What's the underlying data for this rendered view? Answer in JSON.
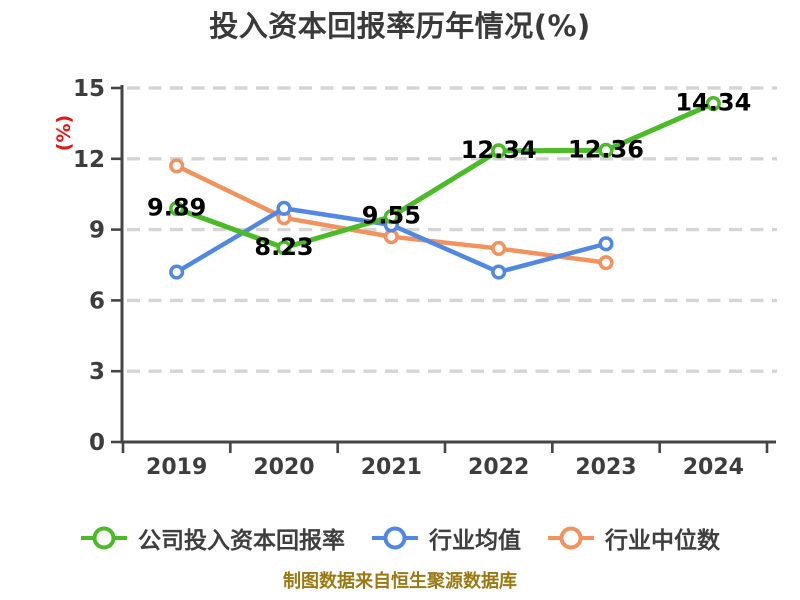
{
  "title": "投入资本回报率历年情况(%)",
  "footer": "制图数据来自恒生聚源数据库",
  "colors": {
    "title_text": "#3a3a3a",
    "axis": "#454545",
    "tick_text": "#3d3d3d",
    "grid": "#d5d5d5",
    "ylabel_red": "#e51717",
    "footer_gold": "#9a7a14",
    "series_company_green": "#4bbb28",
    "series_mean_blue": "#5287e3",
    "series_median_orange": "#f2925e"
  },
  "chart_data": {
    "type": "line",
    "title": "投入资本回报率历年情况(%)",
    "xlabel": "",
    "ylabel": "(%)",
    "categories": [
      "2019",
      "2020",
      "2021",
      "2022",
      "2023",
      "2024"
    ],
    "yticks": [
      0,
      3,
      6,
      9,
      12,
      15
    ],
    "ylim": [
      0,
      15
    ],
    "grid": "horizontal-dashed",
    "legend_position": "bottom",
    "series": [
      {
        "name": "公司投入资本回报率",
        "color": "#4bbb28",
        "values": [
          9.89,
          8.23,
          9.55,
          12.34,
          12.36,
          14.34
        ],
        "labels": [
          "9.89",
          "8.23",
          "9.55",
          "12.34",
          "12.36",
          "14.34"
        ],
        "show_labels": true,
        "line_width": 5
      },
      {
        "name": "行业均值",
        "color": "#5287e3",
        "values": [
          7.2,
          9.9,
          9.2,
          7.2,
          8.4,
          null
        ],
        "labels": [],
        "show_labels": false,
        "line_width": 4.5
      },
      {
        "name": "行业中位数",
        "color": "#f2925e",
        "values": [
          11.7,
          9.5,
          8.7,
          8.2,
          7.6,
          null
        ],
        "labels": [],
        "show_labels": false,
        "line_width": 4.5
      }
    ]
  }
}
